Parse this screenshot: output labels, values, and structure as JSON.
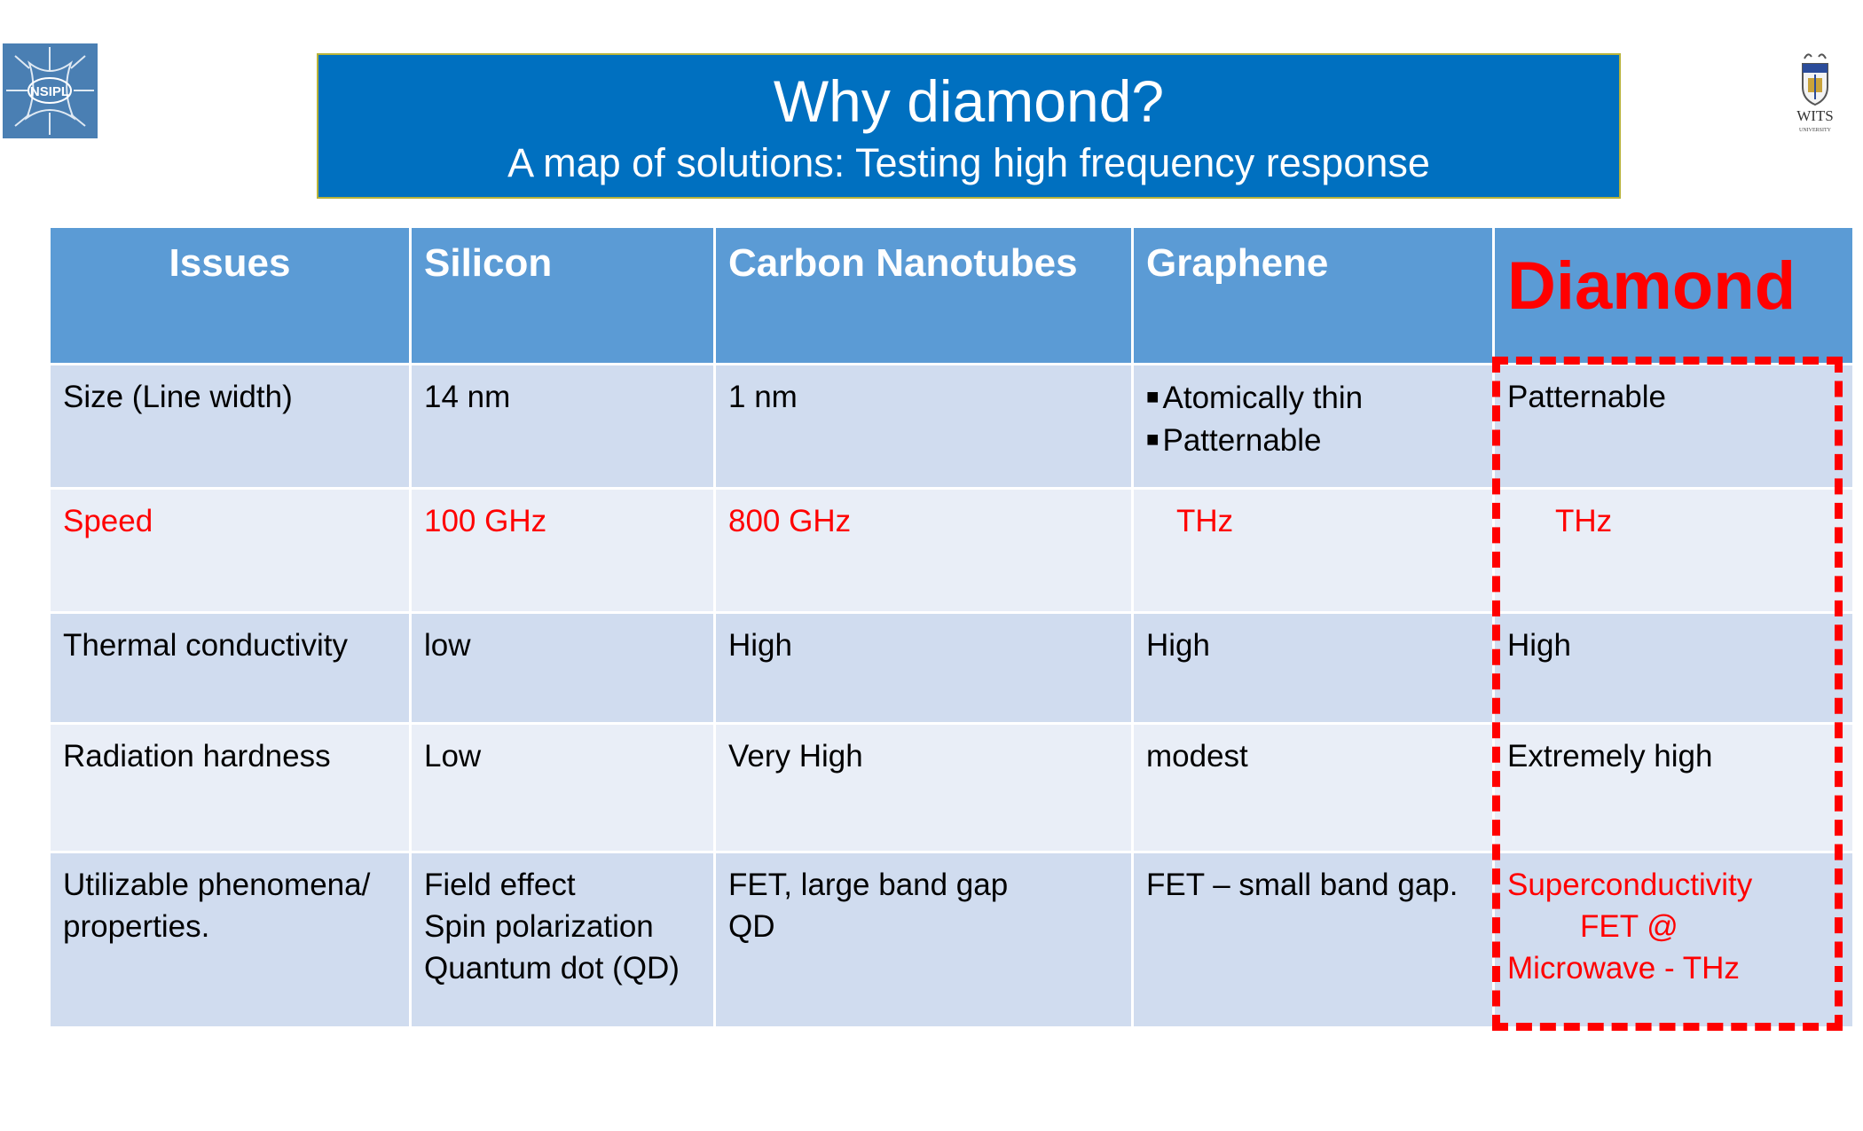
{
  "header": {
    "title": "Why diamond?",
    "subtitle": "A map of solutions: Testing high frequency response",
    "left_logo": {
      "icon": "nsipl-logo",
      "text": "NSIPL"
    },
    "right_logo": {
      "icon": "wits-crest-logo",
      "text": "WITS",
      "subtext": "UNIVERSITY"
    }
  },
  "table": {
    "columns": [
      "Issues",
      "Silicon",
      "Carbon Nanotubes",
      "Graphene",
      "Diamond"
    ],
    "rows": [
      {
        "issue": "Size (Line width)",
        "silicon": "14 nm",
        "cnt": "1 nm",
        "graphene": [
          "Atomically thin",
          "Patternable"
        ],
        "diamond": "Patternable"
      },
      {
        "issue": "Speed",
        "silicon": "100 GHz",
        "cnt": "800 GHz",
        "graphene": "THz",
        "diamond": "THz"
      },
      {
        "issue": "Thermal conductivity",
        "silicon": "low",
        "cnt": "High",
        "graphene": "High",
        "diamond": "High"
      },
      {
        "issue": "Radiation hardness",
        "silicon": "Low",
        "cnt": "Very High",
        "graphene": "modest",
        "diamond": "Extremely high"
      },
      {
        "issue": [
          "Utilizable phenomena/",
          "properties."
        ],
        "silicon": [
          "Field effect",
          "Spin polarization",
          "Quantum dot (QD)"
        ],
        "cnt": [
          "FET, large band gap",
          "QD"
        ],
        "graphene": "FET –  small band gap.",
        "diamond": [
          "Superconductivity",
          "FET @",
          "Microwave - THz"
        ]
      }
    ]
  },
  "colors": {
    "title_bg": "#0070c0",
    "header_bg": "#5b9bd5",
    "row_dark": "#d0dcef",
    "row_light": "#e9eef7",
    "highlight": "#ff0000"
  }
}
